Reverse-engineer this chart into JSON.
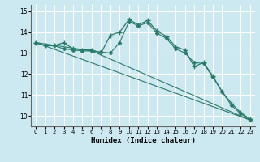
{
  "xlabel": "Humidex (Indice chaleur)",
  "xlim": [
    -0.5,
    23.5
  ],
  "ylim": [
    9.5,
    15.3
  ],
  "bg_color": "#cce8f0",
  "grid_color": "#ffffff",
  "line_color": "#2a7a6a",
  "xticks": [
    0,
    1,
    2,
    3,
    4,
    5,
    6,
    7,
    8,
    9,
    10,
    11,
    12,
    13,
    14,
    15,
    16,
    17,
    18,
    19,
    20,
    21,
    22,
    23
  ],
  "yticks": [
    10,
    11,
    12,
    13,
    14,
    15
  ],
  "line1_x": [
    0,
    1,
    2,
    3,
    4,
    5,
    6,
    7,
    8,
    9,
    10,
    11,
    12,
    13,
    14,
    15,
    16,
    17,
    18,
    19,
    20,
    21,
    22,
    23
  ],
  "line1_y": [
    13.5,
    13.35,
    13.35,
    13.5,
    13.2,
    13.15,
    13.15,
    13.0,
    13.85,
    14.0,
    14.6,
    14.35,
    14.55,
    14.05,
    13.8,
    13.3,
    13.15,
    12.35,
    12.55,
    11.9,
    11.15,
    10.6,
    10.15,
    9.85
  ],
  "line2_x": [
    0,
    1,
    2,
    3,
    4,
    5,
    6,
    7,
    8,
    9,
    10,
    11,
    12,
    13,
    14,
    15,
    16,
    17,
    18,
    19,
    20,
    21,
    22,
    23
  ],
  "line2_y": [
    13.5,
    13.35,
    13.35,
    13.2,
    13.15,
    13.1,
    13.1,
    13.05,
    13.0,
    13.5,
    14.5,
    14.3,
    14.45,
    13.95,
    13.7,
    13.2,
    13.0,
    12.55,
    12.5,
    11.85,
    11.15,
    10.5,
    10.1,
    9.8
  ],
  "line3_x": [
    0,
    23
  ],
  "line3_y": [
    13.5,
    9.8
  ],
  "line4_x": [
    0,
    6,
    23
  ],
  "line4_y": [
    13.5,
    13.1,
    9.8
  ]
}
